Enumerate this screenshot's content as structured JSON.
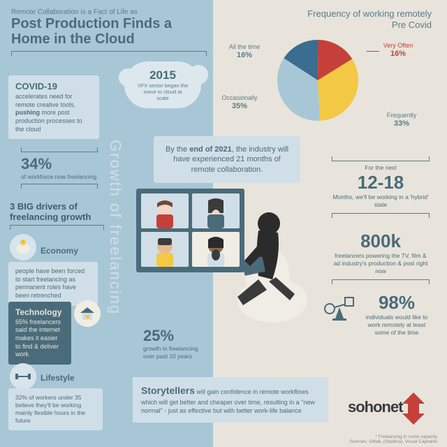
{
  "colors": {
    "bg": "#e8e4db",
    "panel": "#a8c7d6",
    "box": "#d0dfe7",
    "dark": "#4a6b7a",
    "red": "#c54038",
    "yellow": "#f3c843",
    "blue": "#3a6d8f"
  },
  "title": {
    "pre": "Remote Collaboration is a Fact of Life as",
    "main1": "Post Production Finds a",
    "main2": "Home in the Cloud"
  },
  "pieTitle1": "Frequency of working remotely",
  "pieTitle2": "Pre Covid",
  "pie": {
    "slices": [
      {
        "label": "All the time",
        "pct": 16,
        "color": "#3a6d8f"
      },
      {
        "label": "Very Often",
        "pct": 16,
        "color": "#c54038"
      },
      {
        "label": "Frequently",
        "pct": 33,
        "color": "#f3c843"
      },
      {
        "label": "Occasionally",
        "pct": 35,
        "color": "#a8c7d6"
      }
    ],
    "radius": 58
  },
  "cloud": {
    "year": "2015",
    "text": "VFX sector  began the move to cloud at scale"
  },
  "covid": {
    "head": "COVID-19",
    "body": "accelerates need for remote creative tools, pushing more post production processes to the cloud",
    "bold": "pushing"
  },
  "stat34": {
    "num": "34%",
    "sub": "of workforce now freelancing"
  },
  "drivers": {
    "line1": "3 BIG drivers of",
    "line2": "freelancing growth"
  },
  "driver1": {
    "head": "Economy",
    "body": "people have been forced to start freelancing as permanent roles have been retrenched"
  },
  "driver2": {
    "head": "Technology",
    "body": "65% freelancers said the internet makes it easier to find & deliver work"
  },
  "driver3": {
    "head": "Lifestyle",
    "body": "32% of workers under 35 believe they'll be working mainly flexible hours in the future"
  },
  "growthLabel": "Growth  of  freelancing",
  "banner2021": {
    "pre": "By the ",
    "bold": "end of 2021",
    "post": ", the industry will have experienced 21 months of remote collaboration."
  },
  "stat25": {
    "num": "25%",
    "sub": "growth in freelancing over past 10 years"
  },
  "hybrid": {
    "pre": "For the next",
    "num": "12-18",
    "sub": "Months, we'll be working in a 'hybrid' state"
  },
  "stat800": {
    "num": "800k",
    "sub": "freelancers powering the TV, film & ad industry's production & post right now"
  },
  "stat98": {
    "num": "98%",
    "sub": "individuals would like to work remotely at least some of the time"
  },
  "story": {
    "head": "Storytellers",
    "body": " will gain confidence in remote workflows which will get better and cheaper over time, resulting in a \"new normal\"  - just as effective but with better work-life balance"
  },
  "logo": "sohonet",
  "source": "* Freelancing in some capacity\nSources: Gitlab, (Stastica), Visual Capitalist",
  "illustration": {
    "bg": "#d0dfe7",
    "screen": "#4a6b7a",
    "skin": "#3b3b3b",
    "beanbag": "#f0ede5"
  }
}
